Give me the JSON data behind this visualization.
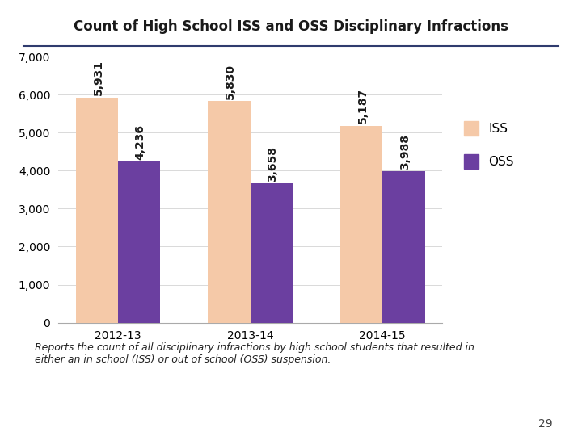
{
  "title": "Count of High School ISS and OSS Disciplinary Infractions",
  "categories": [
    "2012-13",
    "2013-14",
    "2014-15"
  ],
  "iss_values": [
    5931,
    5830,
    5187
  ],
  "oss_values": [
    4236,
    3658,
    3988
  ],
  "iss_color": "#F5C9A8",
  "oss_color": "#6B3FA0",
  "ylim": [
    0,
    7000
  ],
  "yticks": [
    0,
    1000,
    2000,
    3000,
    4000,
    5000,
    6000,
    7000
  ],
  "bar_width": 0.32,
  "legend_labels": [
    "ISS",
    "OSS"
  ],
  "subtitle_text": "Reports the count of all disciplinary infractions by high school students that resulted in\neither an in school (ISS) or out of school (OSS) suspension.",
  "page_number": "29",
  "title_fontsize": 12,
  "axis_fontsize": 10,
  "annotation_fontsize": 10,
  "annotation_color": "#1a1a1a",
  "background_color": "#FFFFFF",
  "divider_color": "#2F3B6E",
  "grid_color": "#D9D9D9"
}
